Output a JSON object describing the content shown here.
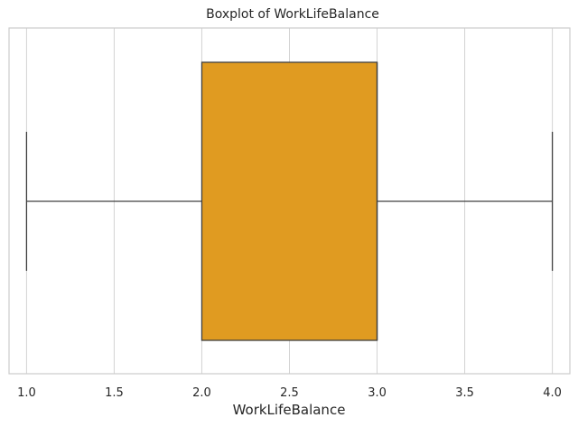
{
  "chart_data": {
    "type": "boxplot",
    "title": "Boxplot of WorkLifeBalance",
    "xlabel": "WorkLifeBalance",
    "ylabel": "",
    "orientation": "horizontal",
    "xlim": [
      0.9,
      4.1
    ],
    "xticks": [
      1.0,
      1.5,
      2.0,
      2.5,
      3.0,
      3.5,
      4.0
    ],
    "xtick_labels": [
      "1.0",
      "1.5",
      "2.0",
      "2.5",
      "3.0",
      "3.5",
      "4.0"
    ],
    "grid": true,
    "box": {
      "whisker_low": 1.0,
      "q1": 2.0,
      "median": 3.0,
      "q3": 3.0,
      "whisker_high": 4.0
    },
    "colors": {
      "box_fill": "#e09b21",
      "line": "#404040",
      "grid": "#d3d3d3",
      "spine": "#cccccc"
    }
  }
}
